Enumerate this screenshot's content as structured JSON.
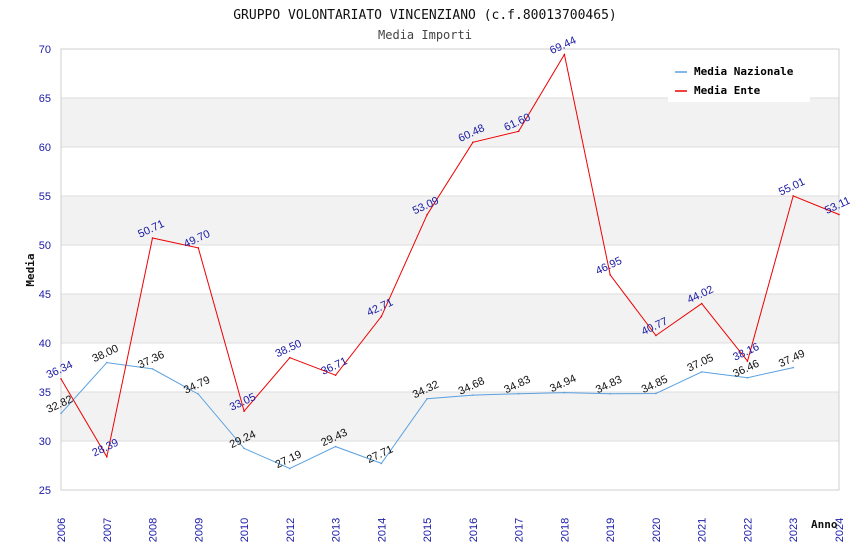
{
  "chart_data": {
    "type": "line",
    "title": "GRUPPO VOLONTARIATO VINCENZIANO (c.f.80013700465)",
    "subtitle": "Media Importi",
    "xlabel": "Anno",
    "ylabel": "Media",
    "ylim": [
      25,
      70
    ],
    "yticks": [
      "25",
      "30",
      "35",
      "40",
      "45",
      "50",
      "55",
      "60",
      "65",
      "70"
    ],
    "categories": [
      "2006",
      "2007",
      "2008",
      "2009",
      "2010",
      "2012",
      "2013",
      "2014",
      "2015",
      "2016",
      "2017",
      "2018",
      "2019",
      "2020",
      "2021",
      "2022",
      "2023",
      "2024"
    ],
    "legend_position": "top-right",
    "series": [
      {
        "name": "Media Nazionale",
        "color": "#5aa0e0",
        "values": [
          32.82,
          38.0,
          37.36,
          34.79,
          29.24,
          27.19,
          29.43,
          27.71,
          34.32,
          34.68,
          34.83,
          34.94,
          34.83,
          34.85,
          37.05,
          36.46,
          37.49,
          null
        ],
        "labels": [
          "32.82",
          "38.00",
          "37.36",
          "34.79",
          "29.24",
          "27.19",
          "29.43",
          "27.71",
          "34.32",
          "34.68",
          "34.83",
          "34.94",
          "34.83",
          "34.85",
          "37.05",
          "36.46",
          "37.49",
          null
        ]
      },
      {
        "name": "Media Ente",
        "color": "#ee0000",
        "values": [
          36.34,
          28.39,
          50.71,
          49.7,
          33.05,
          38.5,
          36.71,
          42.71,
          53.09,
          60.48,
          61.6,
          69.44,
          46.95,
          40.77,
          44.02,
          38.16,
          55.01,
          53.11
        ],
        "labels": [
          "36.34",
          "28.39",
          "50.71",
          "49.70",
          "33.05",
          "38.50",
          "36.71",
          "42.71",
          "53.09",
          "60.48",
          "61.60",
          "69.44",
          "46.95",
          "40.77",
          "44.02",
          "38.16",
          "55.01",
          "53.11"
        ]
      }
    ]
  }
}
